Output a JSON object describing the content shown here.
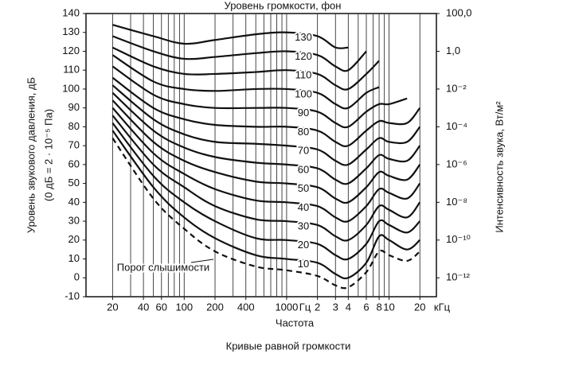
{
  "chart_data": {
    "type": "line",
    "title": "Уровень громкости, фон",
    "ylabel": "Уровень звукового давления, дБ",
    "ylabel2": "(0 дБ = 2 · 10⁻⁵ Па)",
    "y2label": "Интенсивность звука, Вт/м²",
    "xlabel": "Частота",
    "caption": "Кривые равной громкости",
    "x_units": [
      "Гц",
      "кГц"
    ],
    "x_log": true,
    "xlim": [
      11,
      29000
    ],
    "xticks": [
      20,
      40,
      60,
      100,
      200,
      400,
      1000,
      {
        "value": 2000,
        "label": "2"
      },
      {
        "value": 3000,
        "label": "3"
      },
      {
        "value": 4000,
        "label": "4"
      },
      {
        "value": 6000,
        "label": "6"
      },
      {
        "value": 8000,
        "label": "8"
      },
      {
        "value": 10000,
        "label": "10"
      },
      {
        "value": 20000,
        "label": "20"
      }
    ],
    "xgrid": [
      20,
      30,
      40,
      50,
      60,
      70,
      80,
      90,
      100,
      200,
      300,
      400,
      500,
      600,
      700,
      800,
      900,
      1000,
      2000,
      3000,
      4000,
      5000,
      6000,
      7000,
      8000,
      9000,
      10000,
      20000
    ],
    "ylim": [
      -10,
      140
    ],
    "yticks": [
      -10,
      0,
      10,
      20,
      30,
      40,
      50,
      60,
      70,
      80,
      90,
      100,
      110,
      120,
      130,
      140
    ],
    "y2_log": true,
    "y2lim": [
      1e-13,
      100
    ],
    "y2ticks": [
      {
        "value": 100,
        "label": "100,0"
      },
      {
        "value": 1,
        "label": "1,0"
      },
      {
        "value": 0.01,
        "label": "10⁻²"
      },
      {
        "value": 0.0001,
        "label": "10⁻⁴"
      },
      {
        "value": 1e-06,
        "label": "10⁻⁶"
      },
      {
        "value": 1e-08,
        "label": "10⁻⁸"
      },
      {
        "value": 1e-10,
        "label": "10⁻¹⁰"
      },
      {
        "value": 1e-12,
        "label": "10⁻¹²"
      }
    ],
    "color": "#111111",
    "x": [
      20,
      50,
      100,
      200,
      500,
      1000,
      2000,
      3000,
      4000,
      6000,
      8000,
      10000,
      15000,
      20000
    ],
    "series": [
      {
        "name": "Порог слышимости",
        "style": "dashed",
        "values": [
          74,
          42,
          26,
          14,
          6,
          4,
          1,
          -4,
          -5,
          3,
          14,
          12,
          9,
          14
        ]
      },
      {
        "name": "10",
        "values": [
          78,
          48,
          32,
          21,
          12,
          10,
          8,
          2,
          0,
          8,
          22,
          20,
          15,
          20
        ]
      },
      {
        "name": "20",
        "values": [
          82,
          54,
          40,
          30,
          21,
          20,
          18,
          12,
          10,
          18,
          30,
          28,
          24,
          30
        ]
      },
      {
        "name": "30",
        "values": [
          86,
          60,
          48,
          38,
          31,
          30,
          28,
          22,
          20,
          28,
          38,
          36,
          32,
          40
        ]
      },
      {
        "name": "40",
        "values": [
          90,
          66,
          55,
          47,
          41,
          40,
          38,
          32,
          30,
          38,
          47,
          45,
          42,
          50
        ]
      },
      {
        "name": "50",
        "values": [
          94,
          72,
          62,
          56,
          51,
          50,
          48,
          42,
          40,
          48,
          56,
          54,
          52,
          60
        ]
      },
      {
        "name": "60",
        "values": [
          98,
          78,
          69,
          64,
          61,
          60,
          58,
          52,
          50,
          58,
          65,
          63,
          62,
          70
        ]
      },
      {
        "name": "70",
        "values": [
          102,
          84,
          76,
          72,
          71,
          70,
          68,
          62,
          60,
          68,
          74,
          72,
          72,
          80
        ]
      },
      {
        "name": "80",
        "values": [
          106,
          90,
          84,
          81,
          80,
          80,
          78,
          72,
          70,
          78,
          83,
          82,
          82,
          90
        ]
      },
      {
        "name": "90",
        "values": [
          112,
          97,
          92,
          90,
          90,
          90,
          88,
          82,
          80,
          88,
          92,
          92,
          95,
          null
        ]
      },
      {
        "name": "100",
        "values": [
          118,
          104,
          100,
          99,
          100,
          100,
          98,
          92,
          90,
          98,
          101,
          null,
          null,
          null
        ]
      },
      {
        "name": "110",
        "values": [
          122,
          112,
          108,
          108,
          109,
          110,
          108,
          102,
          100,
          108,
          115,
          null,
          null,
          null
        ]
      },
      {
        "name": "120",
        "values": [
          128,
          120,
          116,
          117,
          119,
          120,
          118,
          112,
          110,
          120,
          null,
          null,
          null,
          null
        ]
      },
      {
        "name": "130",
        "values": [
          134,
          128,
          124,
          126,
          129,
          130,
          128,
          122,
          122,
          null,
          null,
          null,
          null,
          null
        ]
      }
    ]
  }
}
